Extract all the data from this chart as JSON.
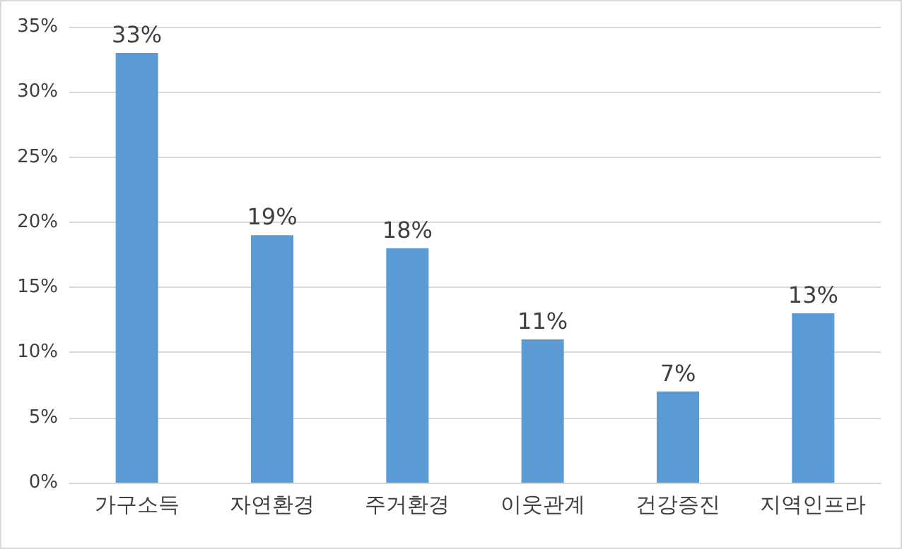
{
  "chart_data": {
    "type": "bar",
    "categories": [
      "가구소득",
      "자연환경",
      "주거환경",
      "이웃관계",
      "건강증진",
      "지역인프라"
    ],
    "values": [
      33,
      19,
      18,
      11,
      7,
      13
    ],
    "value_labels": [
      "33%",
      "19%",
      "18%",
      "11%",
      "7%",
      "13%"
    ],
    "color": "#5b9bd5",
    "ylim": [
      0,
      35
    ],
    "yticks": [
      {
        "value": 0,
        "label": "0%"
      },
      {
        "value": 5,
        "label": "5%"
      },
      {
        "value": 10,
        "label": "10%"
      },
      {
        "value": 15,
        "label": "15%"
      },
      {
        "value": 20,
        "label": "20%"
      },
      {
        "value": 25,
        "label": "25%"
      },
      {
        "value": 30,
        "label": "30%"
      },
      {
        "value": 35,
        "label": "35%"
      }
    ],
    "grid": true
  }
}
